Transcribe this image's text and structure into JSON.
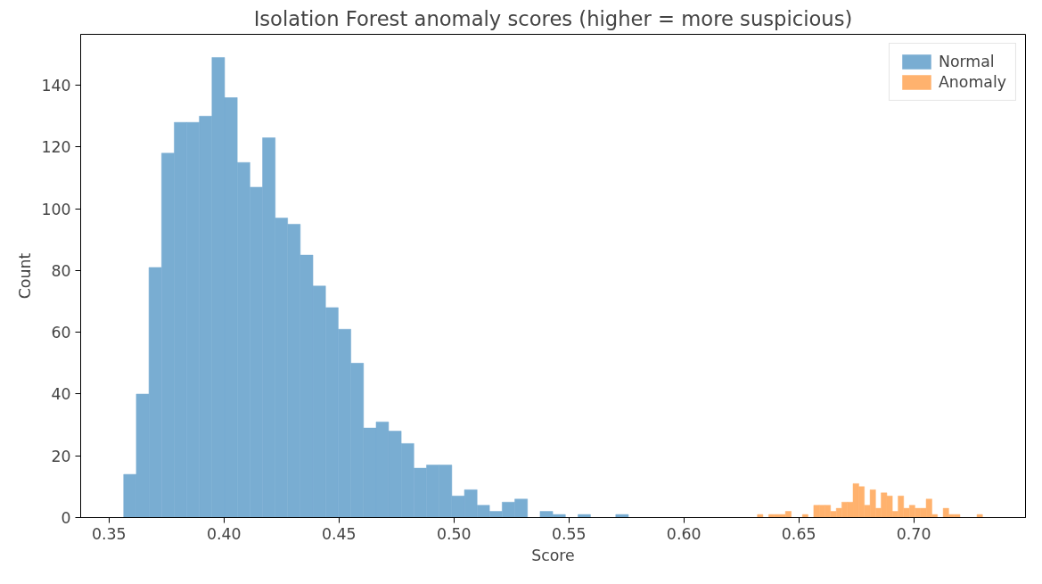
{
  "chart_data": {
    "type": "histogram",
    "title": "Isolation Forest anomaly scores (higher = more suspicious)",
    "xlabel": "Score",
    "ylabel": "Count",
    "xlim": [
      0.3377,
      0.7486
    ],
    "ylim": [
      0,
      156.5
    ],
    "xticks": [
      0.35,
      {
        "value": 0.4,
        "label": "0.40"
      },
      0.45,
      {
        "value": 0.5,
        "label": "0.50"
      },
      0.55,
      {
        "value": 0.6,
        "label": "0.60"
      },
      0.65,
      {
        "value": 0.7,
        "label": "0.70"
      }
    ],
    "yticks": [
      0,
      20,
      40,
      60,
      80,
      100,
      120,
      140
    ],
    "grid": false,
    "legend": "top right",
    "bins": [
      0.3564,
      0.3619,
      0.3674,
      0.3729,
      0.3784,
      0.3838,
      0.3893,
      0.3948,
      0.4003,
      0.4058,
      0.4113,
      0.4168,
      0.4223,
      0.4277,
      0.4332,
      0.4387,
      0.4442,
      0.4497,
      0.4552,
      0.4607,
      0.4662,
      0.4716,
      0.4771,
      0.4826,
      0.4881,
      0.4936,
      0.4991,
      0.5046,
      0.5101,
      0.5155,
      0.521,
      0.5265,
      0.532,
      0.5375,
      0.543,
      0.5485,
      0.554,
      0.5594,
      0.5649,
      0.5704,
      0.5759,
      0.632,
      0.6344,
      0.6369,
      0.6393,
      0.6418,
      0.6442,
      0.6467,
      0.6491,
      0.6516,
      0.654,
      0.6565,
      0.6589,
      0.6614,
      0.6638,
      0.6663,
      0.6687,
      0.6712,
      0.6736,
      0.6761,
      0.6785,
      0.681,
      0.6834,
      0.6858,
      0.6883,
      0.6907,
      0.6932,
      0.6956,
      0.6981,
      0.7005,
      0.703,
      0.7054,
      0.7079,
      0.7103,
      0.7128,
      0.7152,
      0.7177,
      0.7201,
      0.7226,
      0.725,
      0.7275,
      0.7299
    ],
    "series": [
      {
        "name": "Normal",
        "color": "#79add2",
        "values": [
          14,
          40,
          81,
          118,
          128,
          128,
          130,
          149,
          136,
          115,
          107,
          123,
          97,
          95,
          85,
          75,
          68,
          61,
          50,
          29,
          31,
          28,
          24,
          16,
          17,
          17,
          7,
          9,
          4,
          2,
          5,
          6,
          0,
          2,
          1,
          0,
          1,
          0,
          0,
          1,
          0,
          0,
          0,
          0,
          0,
          0,
          0,
          0,
          0,
          0,
          0,
          0,
          0,
          0,
          0,
          0,
          0,
          0,
          0,
          0,
          0,
          0,
          0,
          0,
          0,
          0,
          0,
          0,
          0,
          0,
          0,
          0,
          0,
          0,
          0,
          0,
          0,
          0,
          0,
          0,
          0
        ]
      },
      {
        "name": "Anomaly",
        "color": "#ffb26e",
        "values": [
          0,
          0,
          0,
          0,
          0,
          0,
          0,
          0,
          0,
          0,
          0,
          0,
          0,
          0,
          0,
          0,
          0,
          0,
          0,
          0,
          0,
          0,
          0,
          0,
          0,
          0,
          0,
          0,
          0,
          0,
          0,
          0,
          0,
          0,
          0,
          0,
          0,
          0,
          0,
          0,
          0,
          1,
          0,
          1,
          1,
          1,
          2,
          0,
          0,
          1,
          0,
          4,
          4,
          4,
          2,
          3,
          5,
          5,
          11,
          10,
          4,
          9,
          3,
          8,
          7,
          2,
          7,
          3,
          4,
          3,
          3,
          6,
          1,
          0,
          3,
          1,
          1,
          0,
          0,
          0,
          1
        ]
      }
    ]
  }
}
